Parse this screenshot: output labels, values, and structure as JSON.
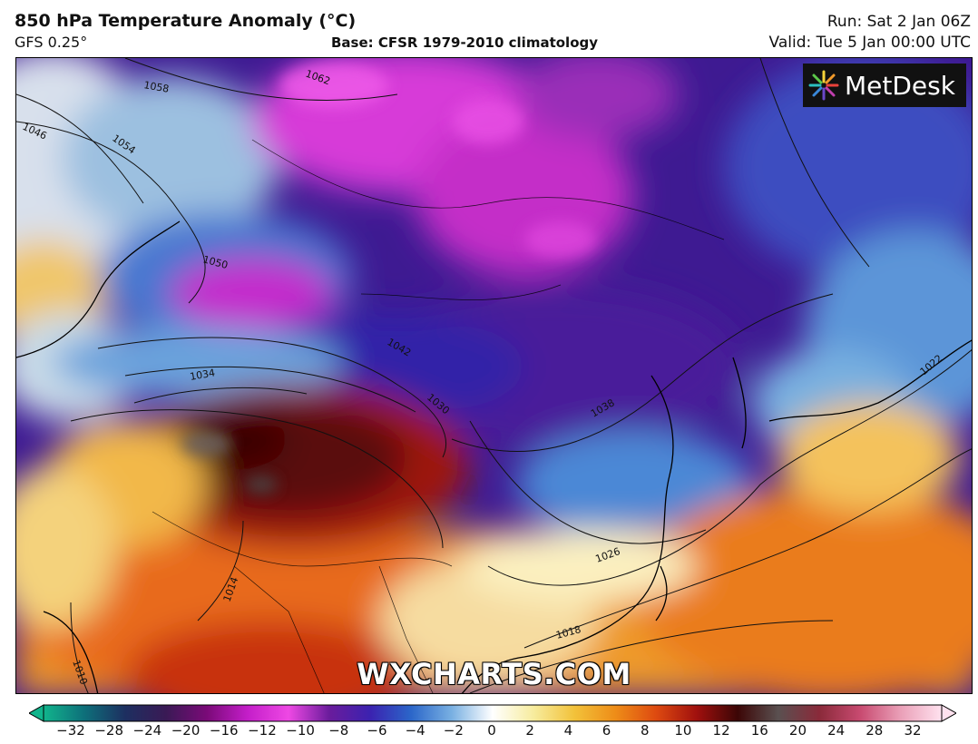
{
  "header": {
    "title": "850 hPa Temperature Anomaly (°C)",
    "model": "GFS 0.25°",
    "base": "Base: CFSR 1979-2010 climatology",
    "run": "Run: Sat 2 Jan 06Z",
    "valid": "Valid: Tue 5 Jan 00:00 UTC"
  },
  "logo": {
    "text": "MetDesk",
    "icon": "starburst-logo-icon"
  },
  "watermark": "WXCHARTS.COM",
  "isobars": [
    "1062",
    "1058",
    "1054",
    "1050",
    "1046",
    "1042",
    "1038",
    "1034",
    "1030",
    "1026",
    "1022",
    "1018",
    "1014",
    "1010"
  ],
  "colorbar": {
    "ticks": [
      "−32",
      "−28",
      "−24",
      "−20",
      "−16",
      "−12",
      "−10",
      "−8",
      "−6",
      "−4",
      "−2",
      "0",
      "2",
      "4",
      "6",
      "8",
      "10",
      "12",
      "16",
      "20",
      "24",
      "28",
      "32"
    ],
    "colors": [
      "#11b48c",
      "#0e6f7a",
      "#1d2f60",
      "#3a1a55",
      "#7a0a78",
      "#c41ec9",
      "#ee48e4",
      "#6a1c9c",
      "#3b22b0",
      "#2b66c9",
      "#79b0e2",
      "#ffffff",
      "#f7ec9e",
      "#f2c23a",
      "#ee8d18",
      "#de4a10",
      "#a0100e",
      "#3c0606",
      "#5a5050",
      "#8a2a3a",
      "#c84a70",
      "#eaa0b8",
      "#ffe2ef"
    ]
  }
}
